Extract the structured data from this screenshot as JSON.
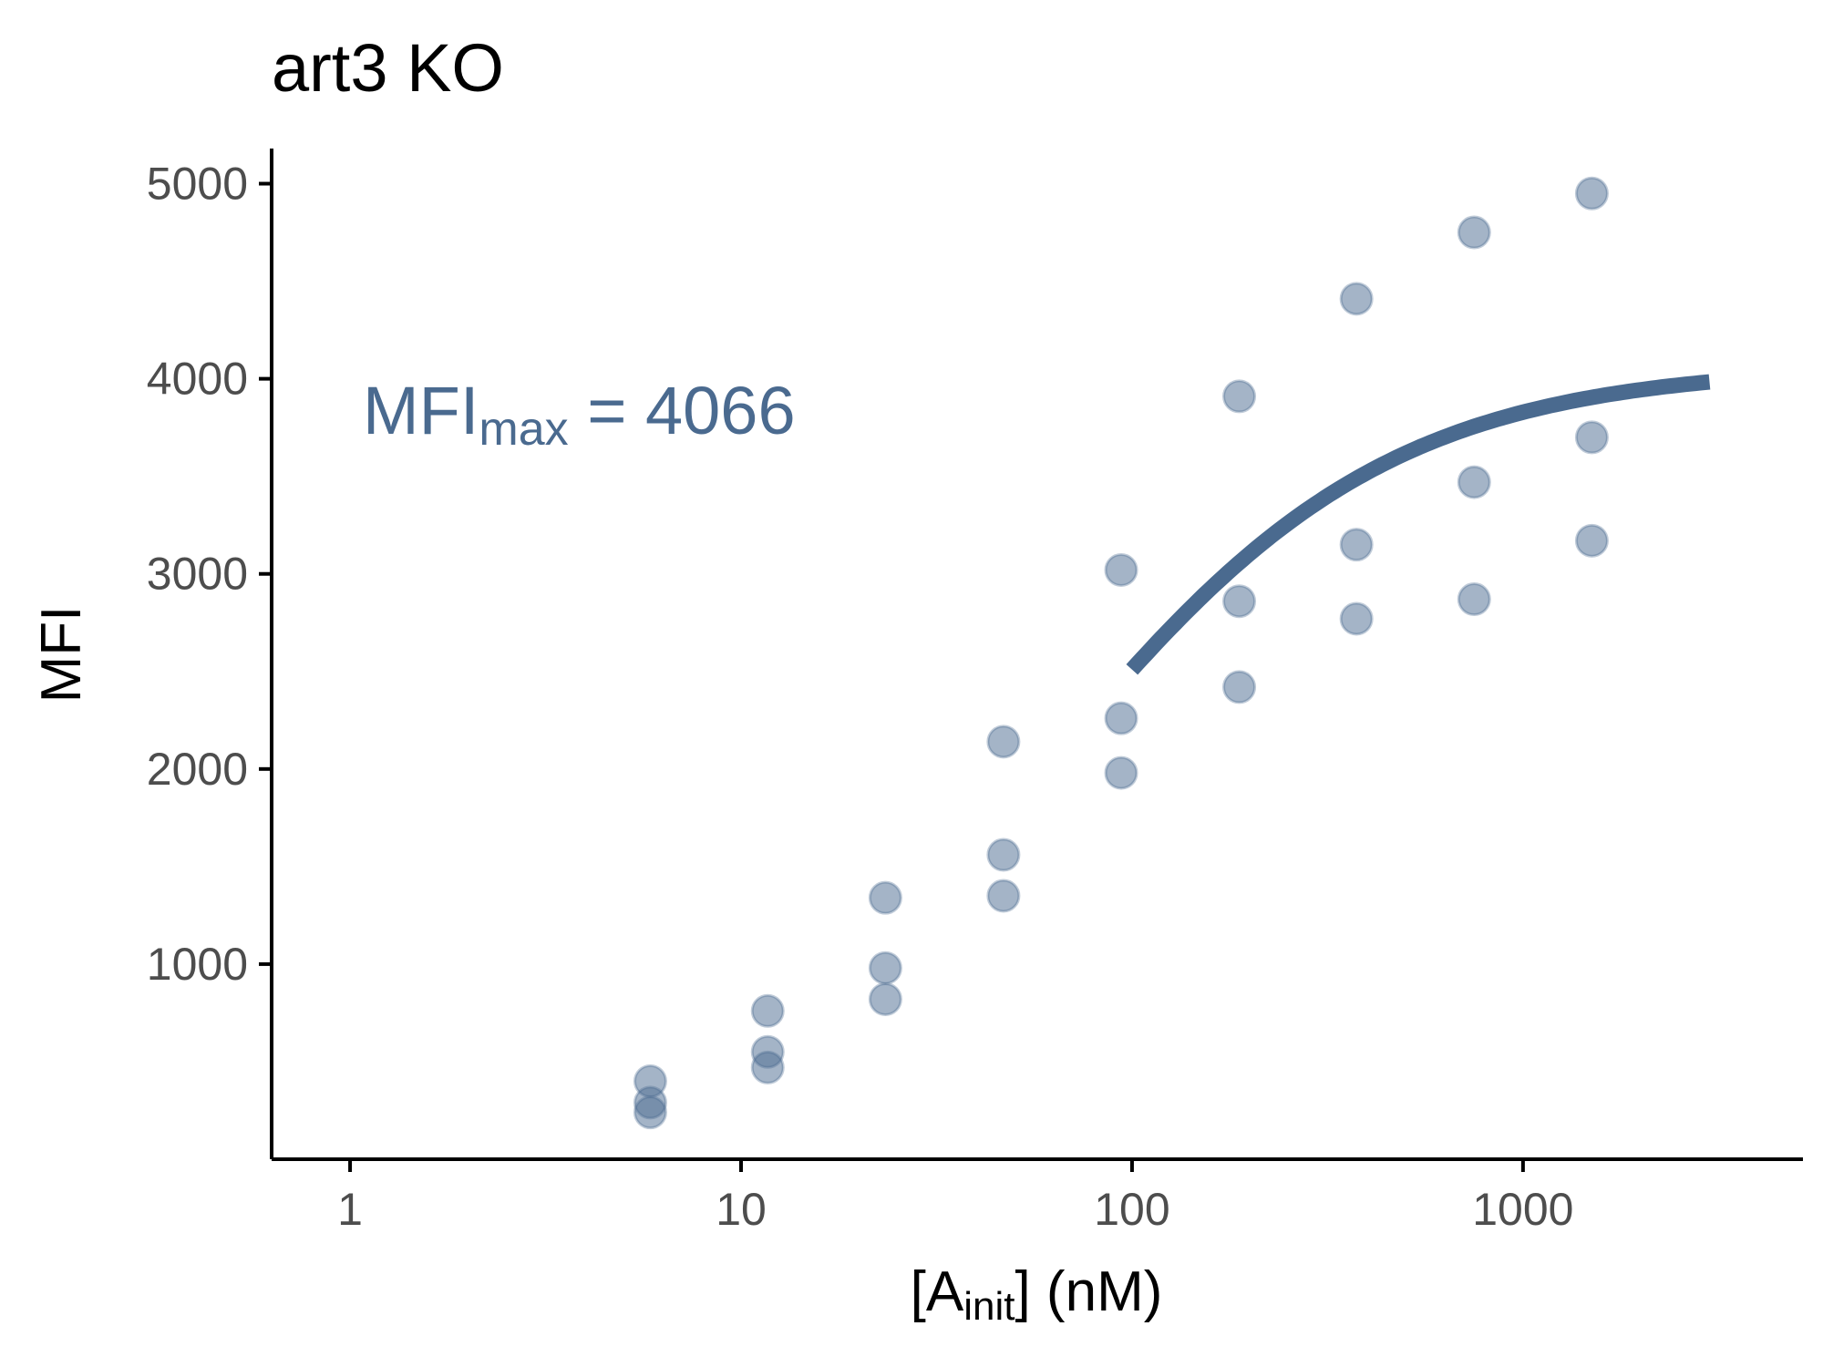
{
  "chart_data": {
    "type": "scatter",
    "title": "art3 KO",
    "xlabel": {
      "main": "[A",
      "subscript": "init",
      "rest": "] (nM)"
    },
    "ylabel": "MFI",
    "x_scale": "log10",
    "xlim": [
      0.63,
      5200
    ],
    "ylim": [
      0,
      5180
    ],
    "x_ticks": [
      {
        "value": 1,
        "label": "1"
      },
      {
        "value": 10,
        "label": "10"
      },
      {
        "value": 100,
        "label": "100"
      },
      {
        "value": 1000,
        "label": "1000"
      }
    ],
    "y_ticks": [
      {
        "value": 1000,
        "label": "1000"
      },
      {
        "value": 2000,
        "label": "2000"
      },
      {
        "value": 3000,
        "label": "3000"
      },
      {
        "value": 4000,
        "label": "4000"
      },
      {
        "value": 5000,
        "label": "5000"
      }
    ],
    "grid": false,
    "legend": "none",
    "point_color": "#4a6a8f",
    "curve_color": "#4a6a8f",
    "annotation": {
      "text": "MFI",
      "subscript": "max",
      "rest": " = 4066"
    },
    "points": [
      {
        "x": 5.86,
        "y": 400
      },
      {
        "x": 5.86,
        "y": 290
      },
      {
        "x": 5.86,
        "y": 240
      },
      {
        "x": 11.7,
        "y": 760
      },
      {
        "x": 11.7,
        "y": 550
      },
      {
        "x": 11.7,
        "y": 470
      },
      {
        "x": 23.4,
        "y": 1340
      },
      {
        "x": 23.4,
        "y": 980
      },
      {
        "x": 23.4,
        "y": 820
      },
      {
        "x": 46.9,
        "y": 2140
      },
      {
        "x": 46.9,
        "y": 1560
      },
      {
        "x": 46.9,
        "y": 1350
      },
      {
        "x": 93.8,
        "y": 3020
      },
      {
        "x": 93.8,
        "y": 2260
      },
      {
        "x": 93.8,
        "y": 1980
      },
      {
        "x": 188,
        "y": 3910
      },
      {
        "x": 188,
        "y": 2860
      },
      {
        "x": 188,
        "y": 2420
      },
      {
        "x": 375,
        "y": 4410
      },
      {
        "x": 375,
        "y": 3150
      },
      {
        "x": 375,
        "y": 2770
      },
      {
        "x": 750,
        "y": 4750
      },
      {
        "x": 750,
        "y": 3470
      },
      {
        "x": 750,
        "y": 2870
      },
      {
        "x": 1500,
        "y": 4950
      },
      {
        "x": 1500,
        "y": 3700
      },
      {
        "x": 1500,
        "y": 3170
      }
    ],
    "fit_curve": {
      "model": "MFImax * x / (Kd + x)",
      "MFImax": 4066,
      "Kd": 62,
      "x_range": [
        100,
        3000
      ]
    }
  }
}
